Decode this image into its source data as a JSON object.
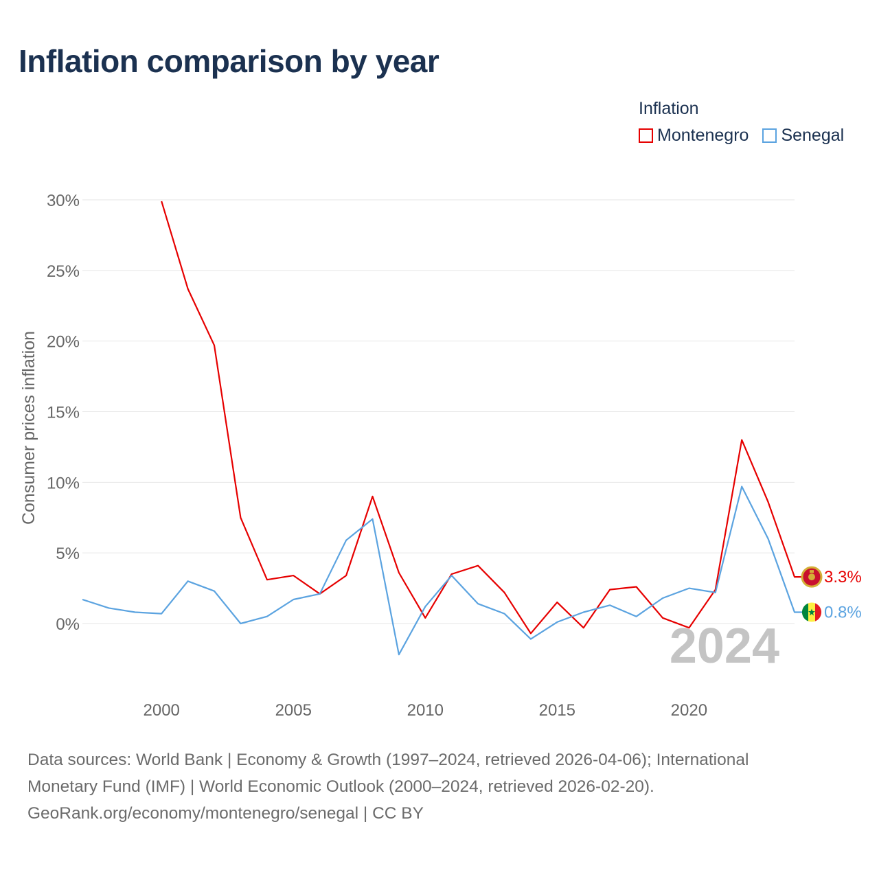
{
  "title": "Inflation comparison by year",
  "legend": {
    "title": "Inflation",
    "items": [
      {
        "name": "Montenegro",
        "color": "#e60000"
      },
      {
        "name": "Senegal",
        "color": "#5ba3e0"
      }
    ]
  },
  "chart_data": {
    "type": "line",
    "title": "Inflation comparison by year",
    "xlabel": "",
    "ylabel": "Consumer prices inflation",
    "xlim": [
      1997,
      2024
    ],
    "ylim": [
      -4,
      30
    ],
    "grid": true,
    "x_ticks": [
      2000,
      2005,
      2010,
      2015,
      2020
    ],
    "x_tick_labels": [
      "2000",
      "2005",
      "2010",
      "2015",
      "2020"
    ],
    "y_ticks": [
      0,
      5,
      10,
      15,
      20,
      25,
      30
    ],
    "y_tick_labels": [
      "0%",
      "5%",
      "10%",
      "15%",
      "20%",
      "25%",
      "30%"
    ],
    "year_watermark": "2024",
    "series": [
      {
        "name": "Montenegro",
        "color": "#e60000",
        "end_label": "3.3%",
        "x": [
          2000,
          2001,
          2002,
          2003,
          2004,
          2005,
          2006,
          2007,
          2008,
          2009,
          2010,
          2011,
          2012,
          2013,
          2014,
          2015,
          2016,
          2017,
          2018,
          2019,
          2020,
          2021,
          2022,
          2023,
          2024
        ],
        "values": [
          29.9,
          23.7,
          19.7,
          7.5,
          3.1,
          3.4,
          2.1,
          3.4,
          9.0,
          3.6,
          0.4,
          3.5,
          4.1,
          2.2,
          -0.7,
          1.5,
          -0.3,
          2.4,
          2.6,
          0.4,
          -0.3,
          2.4,
          13.0,
          8.6,
          3.3
        ]
      },
      {
        "name": "Senegal",
        "color": "#5ba3e0",
        "end_label": "0.8%",
        "x": [
          1997,
          1998,
          1999,
          2000,
          2001,
          2002,
          2003,
          2004,
          2005,
          2006,
          2007,
          2008,
          2009,
          2010,
          2011,
          2012,
          2013,
          2014,
          2015,
          2016,
          2017,
          2018,
          2019,
          2020,
          2021,
          2022,
          2023,
          2024
        ],
        "values": [
          1.7,
          1.1,
          0.8,
          0.7,
          3.0,
          2.3,
          0.0,
          0.5,
          1.7,
          2.1,
          5.9,
          7.4,
          -2.2,
          1.2,
          3.4,
          1.4,
          0.7,
          -1.1,
          0.1,
          0.8,
          1.3,
          0.5,
          1.8,
          2.5,
          2.2,
          9.7,
          6.0,
          0.8
        ]
      }
    ]
  },
  "footer": {
    "line1": "Data sources: World Bank | Economy & Growth (1997–2024, retrieved 2026-04-06); International",
    "line2": "Monetary Fund (IMF) | World Economic Outlook (2000–2024, retrieved 2026-02-20).",
    "line3": "GeoRank.org/economy/montenegro/senegal | CC BY"
  }
}
